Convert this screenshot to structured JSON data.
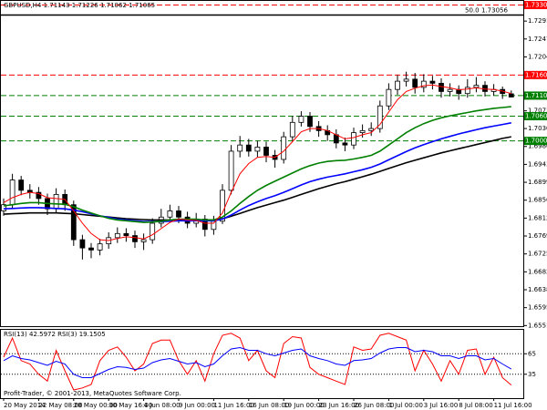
{
  "chart_data": [
    {
      "type": "candlestick",
      "title": "GBPUSD,H4",
      "categories": [
        "20 May 2014",
        null,
        null,
        null,
        "22 May 08:00",
        null,
        null,
        null,
        "28 May 00:00",
        null,
        null,
        null,
        "30 May 16:00",
        null,
        null,
        null,
        "4 Jun 08:00",
        null,
        null,
        null,
        "9 Jun 00:00",
        null,
        null,
        null,
        "11 Jun 16:00",
        null,
        null,
        null,
        "16 Jun 08:00",
        null,
        null,
        null,
        "19 Jun 00:00",
        null,
        null,
        null,
        "23 Jun 16:00",
        null,
        null,
        null,
        "26 Jun 08:00",
        null,
        null,
        null,
        "1 Jul 00:00",
        null,
        null,
        null,
        "3 Jul 16:00",
        null,
        null,
        null,
        "8 Jul 08:00",
        null,
        null,
        null,
        "11 Jul 16:00",
        null,
        null
      ],
      "open": [
        1.683,
        1.6845,
        1.6905,
        1.688,
        1.6875,
        1.686,
        1.6835,
        1.687,
        1.6845,
        1.676,
        1.674,
        1.6735,
        1.675,
        1.6765,
        1.6775,
        1.677,
        1.6755,
        1.676,
        1.68,
        1.6815,
        1.683,
        1.6815,
        1.68,
        1.681,
        1.6785,
        1.6805,
        1.688,
        1.6975,
        1.699,
        1.6975,
        1.6985,
        1.6965,
        1.6955,
        1.701,
        1.7045,
        1.706,
        1.7035,
        1.7025,
        1.7015,
        1.6995,
        1.699,
        1.702,
        1.7025,
        1.703,
        1.7085,
        1.7125,
        1.7145,
        1.715,
        1.713,
        1.7145,
        1.714,
        1.712,
        1.7125,
        1.7115,
        1.713,
        1.7135,
        1.712,
        1.7125,
        1.71143
      ],
      "high": [
        1.686,
        1.692,
        1.6915,
        1.6895,
        1.6888,
        1.6872,
        1.6885,
        1.6882,
        1.6855,
        1.6772,
        1.6752,
        1.6762,
        1.6778,
        1.679,
        1.6788,
        1.6782,
        1.6775,
        1.6812,
        1.6835,
        1.6845,
        1.6842,
        1.6828,
        1.6825,
        1.682,
        1.6818,
        1.6895,
        1.699,
        1.7012,
        1.7005,
        1.7,
        1.6998,
        1.6978,
        1.7022,
        1.706,
        1.7072,
        1.707,
        1.7048,
        1.7038,
        1.7028,
        1.7008,
        1.7032,
        1.704,
        1.7045,
        1.7098,
        1.714,
        1.716,
        1.7168,
        1.7165,
        1.7162,
        1.7158,
        1.7152,
        1.714,
        1.7135,
        1.715,
        1.7155,
        1.7145,
        1.7138,
        1.7132,
        1.71226
      ],
      "low": [
        1.6818,
        1.6835,
        1.6868,
        1.686,
        1.6845,
        1.682,
        1.6825,
        1.683,
        1.6745,
        1.6712,
        1.6715,
        1.6722,
        1.6738,
        1.6752,
        1.6755,
        1.674,
        1.6735,
        1.675,
        1.679,
        1.6805,
        1.68,
        1.6788,
        1.679,
        1.6768,
        1.6772,
        1.6798,
        1.687,
        1.696,
        1.6962,
        1.696,
        1.6948,
        1.6935,
        1.6945,
        1.7,
        1.7035,
        1.7022,
        1.701,
        1.7,
        1.6982,
        1.6975,
        1.698,
        1.7008,
        1.7012,
        1.702,
        1.7075,
        1.7112,
        1.7132,
        1.7115,
        1.7118,
        1.7125,
        1.7105,
        1.7108,
        1.71,
        1.7105,
        1.7118,
        1.7108,
        1.711,
        1.7102,
        1.71062
      ],
      "close": [
        1.6845,
        1.6905,
        1.688,
        1.6875,
        1.686,
        1.6835,
        1.687,
        1.6845,
        1.676,
        1.674,
        1.6735,
        1.675,
        1.6765,
        1.6775,
        1.677,
        1.6755,
        1.676,
        1.68,
        1.6815,
        1.683,
        1.6815,
        1.68,
        1.681,
        1.6785,
        1.6805,
        1.688,
        1.6975,
        1.699,
        1.6975,
        1.6985,
        1.6965,
        1.6955,
        1.701,
        1.7045,
        1.706,
        1.7035,
        1.7025,
        1.7015,
        1.6995,
        1.699,
        1.702,
        1.7025,
        1.703,
        1.7085,
        1.7125,
        1.7145,
        1.715,
        1.713,
        1.7145,
        1.714,
        1.712,
        1.7125,
        1.7115,
        1.713,
        1.7135,
        1.712,
        1.7125,
        1.7115,
        1.71065
      ],
      "up_color": "#ffffff",
      "down_color": "#000000",
      "series": [
        {
          "color": "#000000",
          "values": [
            1.6822,
            1.6823,
            1.6824,
            1.6825,
            1.6825,
            1.6825,
            1.6825,
            1.6824,
            1.6823,
            1.6821,
            1.6819,
            1.6817,
            1.6815,
            1.6813,
            1.6811,
            1.681,
            1.6809,
            1.6808,
            1.6808,
            1.6808,
            1.6808,
            1.6808,
            1.6808,
            1.6808,
            1.6808,
            1.6811,
            1.6817,
            1.6824,
            1.6831,
            1.6838,
            1.6844,
            1.685,
            1.6856,
            1.6863,
            1.687,
            1.6877,
            1.6884,
            1.689,
            1.6896,
            1.6901,
            1.6907,
            1.6913,
            1.6919,
            1.6926,
            1.6933,
            1.694,
            1.6947,
            1.6953,
            1.6959,
            1.6965,
            1.6971,
            1.6976,
            1.6981,
            1.6986,
            1.6991,
            1.6996,
            1.7001,
            1.7006,
            1.701
          ]
        },
        {
          "color": "#0000ff",
          "values": [
            1.6835,
            1.6836,
            1.6837,
            1.6838,
            1.6838,
            1.6837,
            1.6836,
            1.6835,
            1.6832,
            1.6828,
            1.6823,
            1.6818,
            1.6814,
            1.681,
            1.6808,
            1.6806,
            1.6804,
            1.6804,
            1.6804,
            1.6805,
            1.6806,
            1.6806,
            1.6806,
            1.6806,
            1.6806,
            1.681,
            1.682,
            1.6832,
            1.6843,
            1.6852,
            1.686,
            1.6867,
            1.6875,
            1.6884,
            1.6893,
            1.6901,
            1.6907,
            1.6912,
            1.6916,
            1.692,
            1.6925,
            1.693,
            1.6936,
            1.6944,
            1.6954,
            1.6964,
            1.6974,
            1.6983,
            1.6991,
            1.6998,
            1.7005,
            1.7011,
            1.7017,
            1.7022,
            1.7027,
            1.7032,
            1.7036,
            1.704,
            1.7044
          ]
        },
        {
          "color": "#008000",
          "values": [
            1.6842,
            1.6845,
            1.6848,
            1.685,
            1.685,
            1.6848,
            1.6847,
            1.6846,
            1.684,
            1.6832,
            1.6825,
            1.6818,
            1.6812,
            1.6808,
            1.6806,
            1.6804,
            1.6802,
            1.6803,
            1.6805,
            1.6808,
            1.681,
            1.681,
            1.681,
            1.6808,
            1.6808,
            1.6815,
            1.683,
            1.6848,
            1.6865,
            1.688,
            1.6892,
            1.6902,
            1.6912,
            1.6922,
            1.6932,
            1.694,
            1.6946,
            1.695,
            1.6952,
            1.6953,
            1.6956,
            1.696,
            1.6965,
            1.6975,
            1.699,
            1.7005,
            1.702,
            1.7032,
            1.7042,
            1.705,
            1.7056,
            1.7061,
            1.7065,
            1.7069,
            1.7073,
            1.7076,
            1.7079,
            1.7081,
            1.7083
          ]
        },
        {
          "color": "#ff0000",
          "values": [
            1.685,
            1.6862,
            1.687,
            1.6875,
            1.6872,
            1.6862,
            1.686,
            1.6858,
            1.683,
            1.68,
            1.6775,
            1.676,
            1.6758,
            1.6763,
            1.6767,
            1.6765,
            1.6762,
            1.6772,
            1.6787,
            1.6802,
            1.681,
            1.6808,
            1.6807,
            1.68,
            1.68,
            1.6825,
            1.6875,
            1.692,
            1.6945,
            1.696,
            1.6962,
            1.696,
            1.6975,
            1.6998,
            1.7022,
            1.703,
            1.703,
            1.7025,
            1.7015,
            1.7005,
            1.7008,
            1.7015,
            1.702,
            1.704,
            1.707,
            1.71,
            1.712,
            1.7128,
            1.7134,
            1.7136,
            1.7132,
            1.7129,
            1.7124,
            1.7126,
            1.7129,
            1.7126,
            1.7125,
            1.7121,
            1.7115
          ]
        }
      ],
      "levels": [
        {
          "value": 1.733,
          "label": "1.73300",
          "color": "#ff0000"
        },
        {
          "value": 1.716,
          "label": "1.71600",
          "color": "#ff0000"
        },
        {
          "value": 1.711,
          "label": "1.71100",
          "color": "#008000"
        },
        {
          "value": 1.706,
          "label": "1.70600",
          "color": "#008000"
        },
        {
          "value": 1.7,
          "label": "1.70000",
          "color": "#008000"
        }
      ],
      "fib_level": {
        "label": "50.0",
        "value": 1.73056
      },
      "ylim": [
        1.655,
        1.734
      ],
      "yticks": [
        {
          "value": 1.7291,
          "label": "1.72910"
        },
        {
          "value": 1.72475,
          "label": "1.72475"
        },
        {
          "value": 1.7204,
          "label": "1.72040"
        },
        {
          "value": 1.7073,
          "label": "1.70730"
        },
        {
          "value": 1.703,
          "label": "1.70300"
        },
        {
          "value": 1.69865,
          "label": "1.69865"
        },
        {
          "value": 1.6943,
          "label": "1.69430"
        },
        {
          "value": 1.68995,
          "label": "1.68995"
        },
        {
          "value": 1.6856,
          "label": "1.68560"
        },
        {
          "value": 1.68125,
          "label": "1.68125"
        },
        {
          "value": 1.6769,
          "label": "1.67690"
        },
        {
          "value": 1.67255,
          "label": "1.67255"
        },
        {
          "value": 1.6682,
          "label": "1.66820"
        },
        {
          "value": 1.66385,
          "label": "1.66385"
        },
        {
          "value": 1.6595,
          "label": "1.65950"
        },
        {
          "value": 1.65515,
          "label": "1.65515"
        }
      ],
      "grid": false
    },
    {
      "type": "line",
      "series": [
        {
          "name": "RSI(13)",
          "color": "#0000ff",
          "values": [
            55,
            62,
            58,
            56,
            52,
            48,
            54,
            50,
            35,
            30,
            30,
            36,
            42,
            46,
            45,
            42,
            44,
            52,
            56,
            58,
            54,
            50,
            52,
            46,
            50,
            62,
            72,
            74,
            70,
            70,
            65,
            62,
            66,
            70,
            72,
            62,
            58,
            55,
            50,
            48,
            55,
            56,
            58,
            66,
            72,
            74,
            74,
            68,
            70,
            68,
            62,
            62,
            58,
            62,
            62,
            56,
            58,
            50,
            42.5972
          ]
        },
        {
          "name": "RSI(3)",
          "color": "#ff0000",
          "values": [
            60,
            88,
            55,
            50,
            35,
            25,
            70,
            40,
            12,
            15,
            20,
            55,
            70,
            75,
            60,
            40,
            50,
            80,
            85,
            85,
            55,
            35,
            55,
            25,
            65,
            92,
            95,
            88,
            55,
            70,
            40,
            30,
            80,
            90,
            88,
            45,
            35,
            30,
            25,
            20,
            75,
            70,
            72,
            92,
            95,
            90,
            85,
            40,
            70,
            50,
            25,
            55,
            35,
            70,
            72,
            35,
            60,
            30,
            19.1505
          ]
        }
      ],
      "ylim": [
        0,
        100
      ],
      "yticks": [
        65,
        35
      ],
      "annotation": "Profit-Trader, © 2001-2013, MetaQuotes Software Corp."
    }
  ]
}
